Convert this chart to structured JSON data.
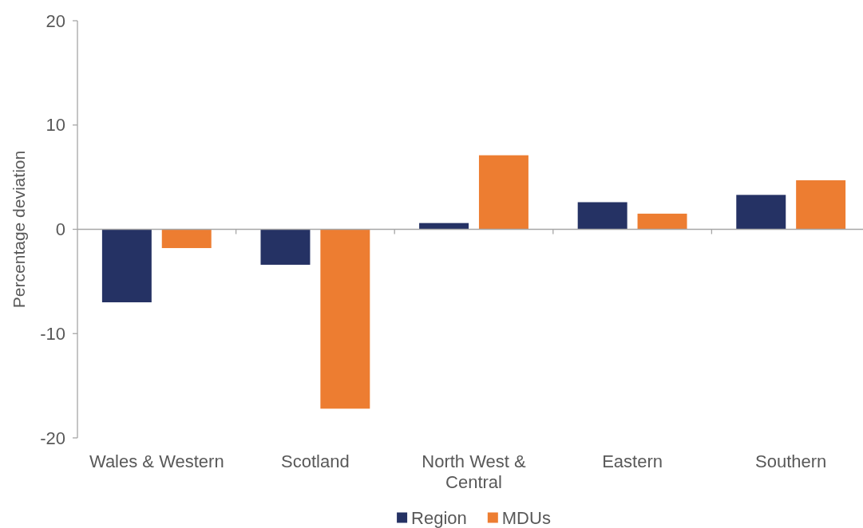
{
  "chart_data": {
    "type": "bar",
    "categories": [
      "Wales & Western",
      "Scotland",
      "North West & Central",
      "Eastern",
      "Southern"
    ],
    "ylabel": "Percentage deviation",
    "ylim": [
      -20,
      20
    ],
    "yticks": [
      -20,
      -10,
      0,
      10,
      20
    ],
    "series": [
      {
        "name": "Region",
        "color": "#253264",
        "values": [
          -7.0,
          -3.4,
          0.6,
          2.6,
          3.3
        ]
      },
      {
        "name": "MDUs",
        "color": "#ed7d31",
        "values": [
          -1.8,
          -17.2,
          7.1,
          1.5,
          4.7
        ]
      }
    ],
    "legend": "bottom"
  }
}
